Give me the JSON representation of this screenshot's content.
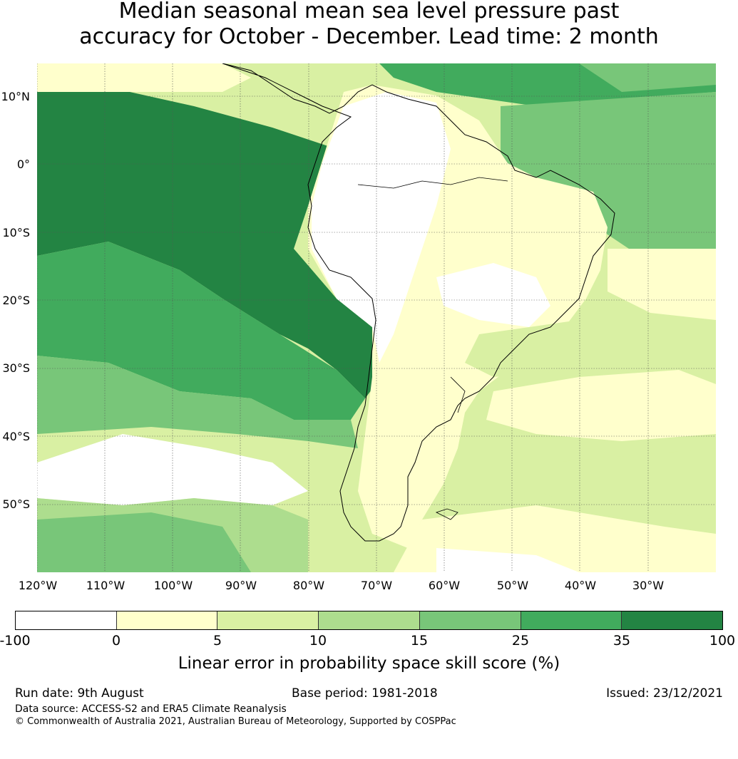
{
  "title_line1": "Median seasonal mean sea level pressure past",
  "title_line2": "accuracy for October - December. Lead time: 2 month",
  "map": {
    "lat_labels": [
      "10°N",
      "0°",
      "10°S",
      "20°S",
      "30°S",
      "40°S",
      "50°S"
    ],
    "lon_labels": [
      "120°W",
      "110°W",
      "100°W",
      "90°W",
      "80°W",
      "70°W",
      "60°W",
      "50°W",
      "40°W",
      "30°W"
    ]
  },
  "colorbar": {
    "ticks": [
      "-100",
      "0",
      "5",
      "10",
      "15",
      "25",
      "35",
      "100"
    ],
    "colors": [
      "#ffffff",
      "#ffffcc",
      "#d9f0a3",
      "#addd8e",
      "#78c679",
      "#41ab5d",
      "#238443"
    ],
    "label": "Linear error in probability space skill score (%)"
  },
  "footer": {
    "run_date": "Run date: 9th August",
    "base_period": "Base period: 1981-2018",
    "issued": "Issued: 23/12/2021",
    "data_source": "Data source: ACCESS-S2 and ERA5 Climate Reanalysis",
    "copyright": "© Commonwealth of Australia 2021, Australian Bureau of Meteorology, Supported by COSPPac"
  }
}
